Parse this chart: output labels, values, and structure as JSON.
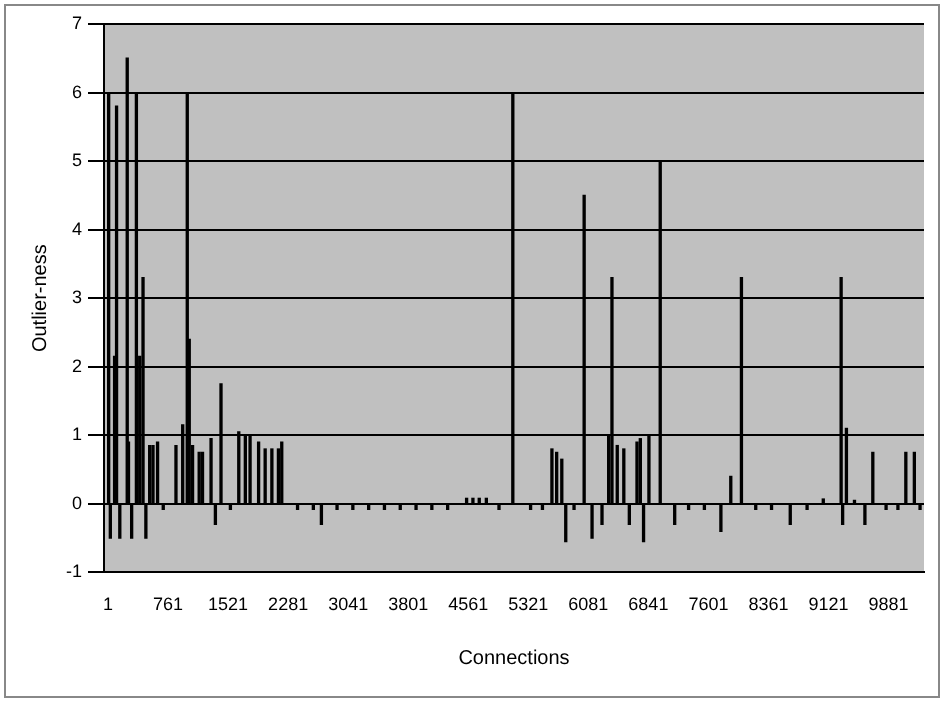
{
  "chart_data": {
    "type": "bar",
    "xlabel": "Connections",
    "ylabel": "Outlier-ness",
    "grid": "y",
    "legend": false,
    "xlim": [
      -50,
      10330
    ],
    "xticks": [
      1,
      761,
      1521,
      2281,
      3041,
      3801,
      4561,
      5321,
      6081,
      6841,
      7601,
      8361,
      9121,
      9881
    ],
    "ylim": [
      -1,
      7
    ],
    "yticks": [
      -1,
      0,
      1,
      2,
      3,
      4,
      5,
      6,
      7
    ],
    "series": [
      {
        "color": "#000000",
        "x": [
          9,
          30,
          84,
          109,
          150,
          244,
          260,
          300,
          360,
          402,
          444,
          480,
          528,
          570,
          628,
          700,
          861,
          946,
          1004,
          1029,
          1071,
          1155,
          1197,
          1305,
          1360,
          1431,
          1550,
          1656,
          1739,
          1799,
          1907,
          1990,
          2075,
          2158,
          2200,
          2400,
          2600,
          2702,
          2900,
          3100,
          3300,
          3500,
          3700,
          3900,
          4100,
          4300,
          4540,
          4620,
          4700,
          4790,
          4950,
          5125,
          5350,
          5500,
          5620,
          5680,
          5745,
          5795,
          5900,
          6028,
          6128,
          6254,
          6338,
          6380,
          6447,
          6530,
          6600,
          6697,
          6739,
          6780,
          6848,
          6991,
          7174,
          7350,
          7550,
          7759,
          7884,
          8019,
          8200,
          8400,
          8637,
          8850,
          9055,
          9281,
          9300,
          9348,
          9450,
          9582,
          9682,
          9850,
          10000,
          10100,
          10208,
          10280
        ],
        "values": [
          6.0,
          -0.5,
          2.15,
          5.8,
          -0.5,
          6.5,
          0.9,
          -0.5,
          6.0,
          2.15,
          3.3,
          -0.5,
          0.85,
          0.85,
          0.9,
          -0.08,
          0.85,
          1.15,
          6.0,
          2.4,
          0.85,
          0.75,
          0.75,
          0.95,
          -0.3,
          1.75,
          -0.08,
          1.05,
          1.0,
          1.0,
          0.9,
          0.8,
          0.8,
          0.8,
          0.9,
          -0.08,
          -0.08,
          -0.3,
          -0.08,
          -0.08,
          -0.08,
          -0.08,
          -0.08,
          -0.08,
          -0.08,
          -0.08,
          0.08,
          0.08,
          0.08,
          0.08,
          -0.08,
          6.0,
          -0.08,
          -0.08,
          0.8,
          0.75,
          0.65,
          -0.55,
          -0.08,
          4.5,
          -0.5,
          -0.3,
          1.0,
          3.3,
          0.85,
          0.8,
          -0.3,
          0.9,
          0.95,
          -0.55,
          1.0,
          5.0,
          -0.3,
          -0.08,
          -0.08,
          -0.4,
          0.4,
          3.3,
          -0.08,
          -0.08,
          -0.3,
          -0.08,
          0.07,
          3.3,
          -0.3,
          1.1,
          0.05,
          -0.3,
          0.75,
          -0.08,
          -0.08,
          0.75,
          0.75,
          -0.08
        ]
      }
    ]
  }
}
